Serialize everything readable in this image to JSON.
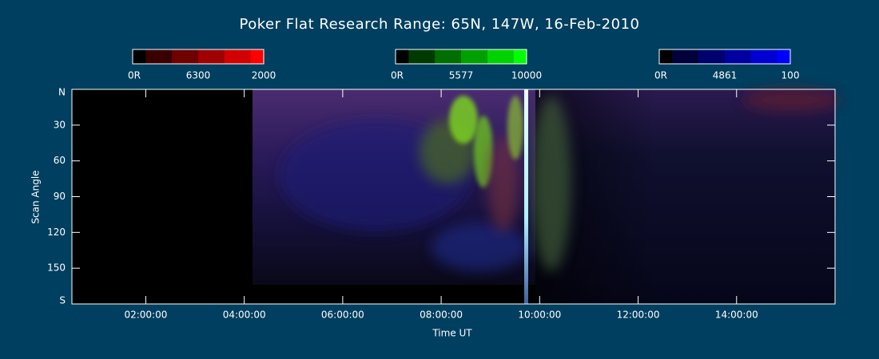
{
  "title": "Poker Flat Research Range: 65N, 147W, 16-Feb-2010",
  "colorbars": [
    {
      "min_label": "0R",
      "wavelength": "6300",
      "max_label": "2000",
      "colors": [
        "#000000",
        "#3a0000",
        "#6e0000",
        "#a00000",
        "#d20000",
        "#ff0000"
      ]
    },
    {
      "min_label": "0R",
      "wavelength": "5577",
      "max_label": "10000",
      "colors": [
        "#000000",
        "#003a00",
        "#006e00",
        "#00a000",
        "#00d200",
        "#00ff00"
      ]
    },
    {
      "min_label": "0R",
      "wavelength": "4861",
      "max_label": "100",
      "colors": [
        "#000000",
        "#00003a",
        "#00006e",
        "#0000a0",
        "#0000d2",
        "#0000ff"
      ]
    }
  ],
  "x_axis": {
    "label": "Time UT",
    "lim": [
      0.5,
      16
    ],
    "ticks": [
      {
        "value": 2,
        "label": "02:00:00"
      },
      {
        "value": 4,
        "label": "04:00:00"
      },
      {
        "value": 6,
        "label": "06:00:00"
      },
      {
        "value": 8,
        "label": "08:00:00"
      },
      {
        "value": 10,
        "label": "10:00:00"
      },
      {
        "value": 12,
        "label": "12:00:00"
      },
      {
        "value": 14,
        "label": "14:00:00"
      }
    ]
  },
  "y_axis": {
    "label": "Scan Angle",
    "lim": [
      0,
      180
    ],
    "ticks": [
      {
        "value": 0,
        "label": "N"
      },
      30,
      60,
      90,
      120,
      150,
      {
        "value": 180,
        "label": "S"
      }
    ]
  }
}
